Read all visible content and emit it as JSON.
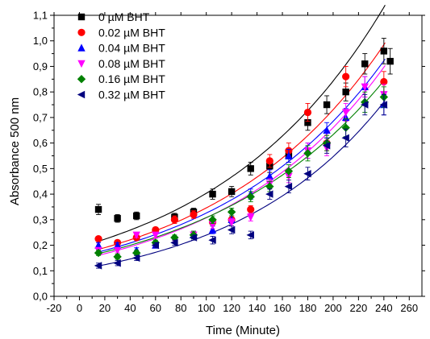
{
  "chart_data": {
    "type": "scatter",
    "xlabel": "Time (Minute)",
    "ylabel": "Absorbance 500 nm",
    "xlim": [
      -20,
      270
    ],
    "ylim": [
      0.0,
      1.1
    ],
    "xticks": [
      -20,
      0,
      20,
      40,
      60,
      80,
      100,
      120,
      140,
      160,
      180,
      200,
      220,
      240,
      260
    ],
    "xtick_labels": [
      "-20",
      "0",
      "20",
      "40",
      "60",
      "80",
      "100",
      "120",
      "140",
      "160",
      "180",
      "200",
      "220",
      "240",
      "260"
    ],
    "yticks": [
      0.0,
      0.1,
      0.2,
      0.3,
      0.4,
      0.5,
      0.6,
      0.7,
      0.8,
      0.9,
      1.0,
      1.1
    ],
    "ytick_labels": [
      "0,0",
      "0,1",
      "0,2",
      "0,3",
      "0,4",
      "0,5",
      "0,6",
      "0,7",
      "0,8",
      "0,9",
      "1,0",
      "1,1"
    ],
    "legend_position": "top-left",
    "grid": false,
    "series": [
      {
        "name": "0 µM BHT",
        "color": "#000000",
        "marker": "square",
        "x": [
          15,
          30,
          45,
          75,
          90,
          105,
          120,
          135,
          150,
          165,
          180,
          195,
          210,
          225,
          240,
          245
        ],
        "y": [
          0.34,
          0.305,
          0.315,
          0.31,
          0.33,
          0.4,
          0.41,
          0.5,
          0.51,
          0.55,
          0.68,
          0.75,
          0.8,
          0.91,
          0.96,
          0.92
        ],
        "err": [
          0.02,
          0.015,
          0.015,
          0.015,
          0.015,
          0.02,
          0.02,
          0.025,
          0.025,
          0.025,
          0.03,
          0.035,
          0.035,
          0.04,
          0.05,
          0.05
        ],
        "fit": [
          0.193,
          0.00737
        ]
      },
      {
        "name": "0.02 µM BHT",
        "color": "#ff0000",
        "marker": "circle",
        "x": [
          15,
          30,
          45,
          60,
          75,
          90,
          105,
          120,
          135,
          150,
          165,
          180,
          195,
          210,
          240
        ],
        "y": [
          0.225,
          0.21,
          0.23,
          0.26,
          0.3,
          0.32,
          0.29,
          0.3,
          0.34,
          0.53,
          0.57,
          0.72,
          0.6,
          0.86,
          0.84
        ],
        "err": [
          0.01,
          0.01,
          0.01,
          0.01,
          0.015,
          0.015,
          0.015,
          0.015,
          0.015,
          0.025,
          0.03,
          0.035,
          0.03,
          0.04,
          0.04
        ],
        "fit": [
          0.164,
          0.00747
        ]
      },
      {
        "name": "0.04 µM BHT",
        "color": "#0000ff",
        "marker": "triangle-up",
        "x": [
          15,
          30,
          45,
          60,
          90,
          105,
          120,
          135,
          150,
          165,
          180,
          195,
          210,
          225,
          240
        ],
        "y": [
          0.2,
          0.2,
          0.18,
          0.2,
          0.24,
          0.26,
          0.3,
          0.4,
          0.47,
          0.55,
          0.57,
          0.65,
          0.7,
          0.82,
          0.75
        ],
        "err": [
          0.01,
          0.01,
          0.01,
          0.01,
          0.015,
          0.015,
          0.015,
          0.02,
          0.025,
          0.025,
          0.03,
          0.03,
          0.035,
          0.04,
          0.04
        ],
        "fit": [
          0.155,
          0.00743
        ]
      },
      {
        "name": "0.08 µM BHT",
        "color": "#ff00ff",
        "marker": "triangle-down",
        "x": [
          15,
          30,
          45,
          60,
          75,
          90,
          105,
          120,
          135,
          150,
          165,
          180,
          195,
          210,
          225,
          240
        ],
        "y": [
          0.18,
          0.18,
          0.24,
          0.24,
          0.22,
          0.24,
          0.28,
          0.29,
          0.31,
          0.44,
          0.47,
          0.57,
          0.58,
          0.72,
          0.82,
          0.79
        ],
        "err": [
          0.01,
          0.01,
          0.01,
          0.01,
          0.01,
          0.015,
          0.015,
          0.015,
          0.015,
          0.02,
          0.025,
          0.03,
          0.03,
          0.035,
          0.04,
          0.04
        ],
        "fit": [
          0.143,
          0.00765
        ]
      },
      {
        "name": "0.16 µM BHT",
        "color": "#008000",
        "marker": "diamond",
        "x": [
          15,
          30,
          45,
          60,
          75,
          90,
          105,
          120,
          135,
          150,
          165,
          180,
          195,
          210,
          225,
          240
        ],
        "y": [
          0.17,
          0.155,
          0.17,
          0.21,
          0.23,
          0.24,
          0.3,
          0.33,
          0.39,
          0.43,
          0.49,
          0.56,
          0.6,
          0.66,
          0.76,
          0.78
        ],
        "err": [
          0.01,
          0.01,
          0.01,
          0.01,
          0.01,
          0.015,
          0.015,
          0.015,
          0.02,
          0.02,
          0.025,
          0.03,
          0.03,
          0.035,
          0.04,
          0.04
        ],
        "fit": [
          0.15,
          0.0072
        ]
      },
      {
        "name": "0.32 µM BHT",
        "color": "#00007f",
        "marker": "triangle-left",
        "x": [
          15,
          30,
          45,
          60,
          75,
          90,
          105,
          120,
          135,
          150,
          165,
          180,
          195,
          210,
          225,
          240
        ],
        "y": [
          0.12,
          0.13,
          0.15,
          0.2,
          0.21,
          0.23,
          0.22,
          0.26,
          0.24,
          0.4,
          0.43,
          0.48,
          0.59,
          0.62,
          0.75,
          0.75
        ],
        "err": [
          0.01,
          0.01,
          0.01,
          0.01,
          0.01,
          0.01,
          0.015,
          0.015,
          0.015,
          0.02,
          0.025,
          0.025,
          0.03,
          0.035,
          0.04,
          0.04
        ],
        "fit": [
          0.105,
          0.00825
        ]
      }
    ]
  }
}
